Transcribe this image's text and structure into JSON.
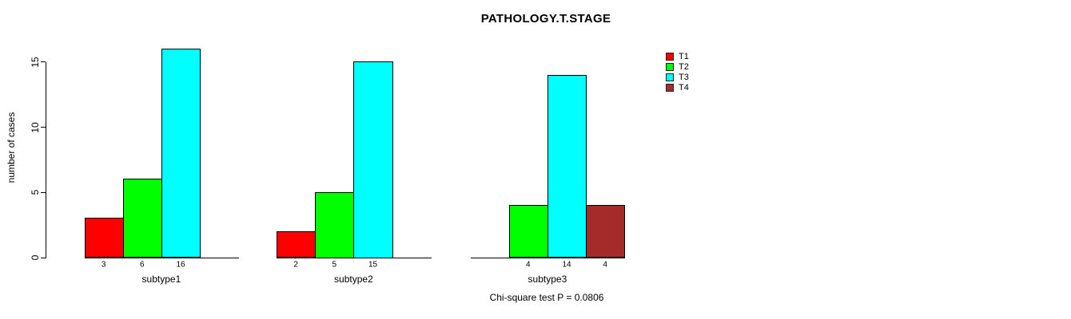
{
  "chart_data": {
    "type": "bar",
    "title": "PATHOLOGY.T.STAGE",
    "ylabel": "number of cases",
    "xlabel": "",
    "ylim": [
      0,
      16.5
    ],
    "yticks": [
      0,
      5,
      10,
      15
    ],
    "grid": false,
    "legend_position": "top-right",
    "categories": [
      "subtype1",
      "subtype2",
      "subtype3"
    ],
    "series": [
      {
        "name": "T1",
        "color": "#ff0000",
        "values": [
          3,
          2,
          0
        ]
      },
      {
        "name": "T2",
        "color": "#00ff00",
        "values": [
          6,
          5,
          4
        ]
      },
      {
        "name": "T3",
        "color": "#00ffff",
        "values": [
          16,
          15,
          14
        ]
      },
      {
        "name": "T4",
        "color": "#a52a2a",
        "values": [
          0,
          0,
          4
        ]
      }
    ],
    "value_labels_nonzero_only": true,
    "annotation": "Chi-square test P = 0.0806"
  }
}
